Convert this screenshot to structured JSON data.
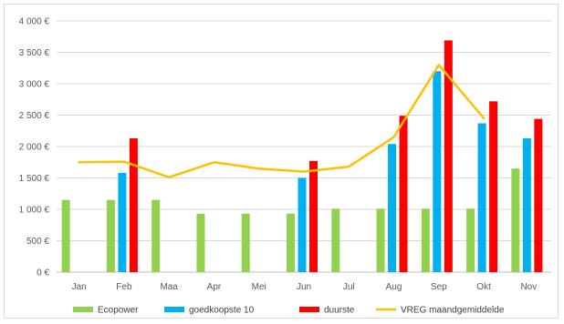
{
  "chart_data": {
    "type": "bar",
    "title": "",
    "xlabel": "",
    "ylabel": "",
    "ylim": [
      0,
      4000
    ],
    "ytick_step": 500,
    "y_tick_labels": [
      "0 €",
      "500 €",
      "1 000 €",
      "1 500 €",
      "2 000 €",
      "2 500 €",
      "3 000 €",
      "3 500 €",
      "4 000 €"
    ],
    "grid": true,
    "legend_position": "bottom",
    "categories": [
      "Jan",
      "Feb",
      "Maa",
      "Apr",
      "Mei",
      "Jun",
      "Jul",
      "Aug",
      "Sep",
      "Okt",
      "Nov"
    ],
    "series": [
      {
        "name": "Ecopower",
        "kind": "bar",
        "color": "#92d050",
        "values": [
          1150,
          1150,
          1150,
          930,
          930,
          930,
          1010,
          1010,
          1010,
          1010,
          1650
        ]
      },
      {
        "name": "goedkoopste 10",
        "kind": "bar",
        "color": "#00b0f0",
        "values": [
          null,
          1580,
          null,
          null,
          null,
          1500,
          null,
          2040,
          3200,
          2370,
          2130
        ]
      },
      {
        "name": "duurste",
        "kind": "bar",
        "color": "#ff0000",
        "values": [
          null,
          2130,
          null,
          null,
          null,
          1770,
          null,
          2490,
          3690,
          2720,
          2440
        ]
      },
      {
        "name": "VREG maandgemiddelde",
        "kind": "line",
        "color": "#ffc000",
        "values": [
          1750,
          1760,
          1510,
          1750,
          1650,
          1600,
          1680,
          2150,
          3300,
          2450,
          null
        ]
      }
    ]
  }
}
